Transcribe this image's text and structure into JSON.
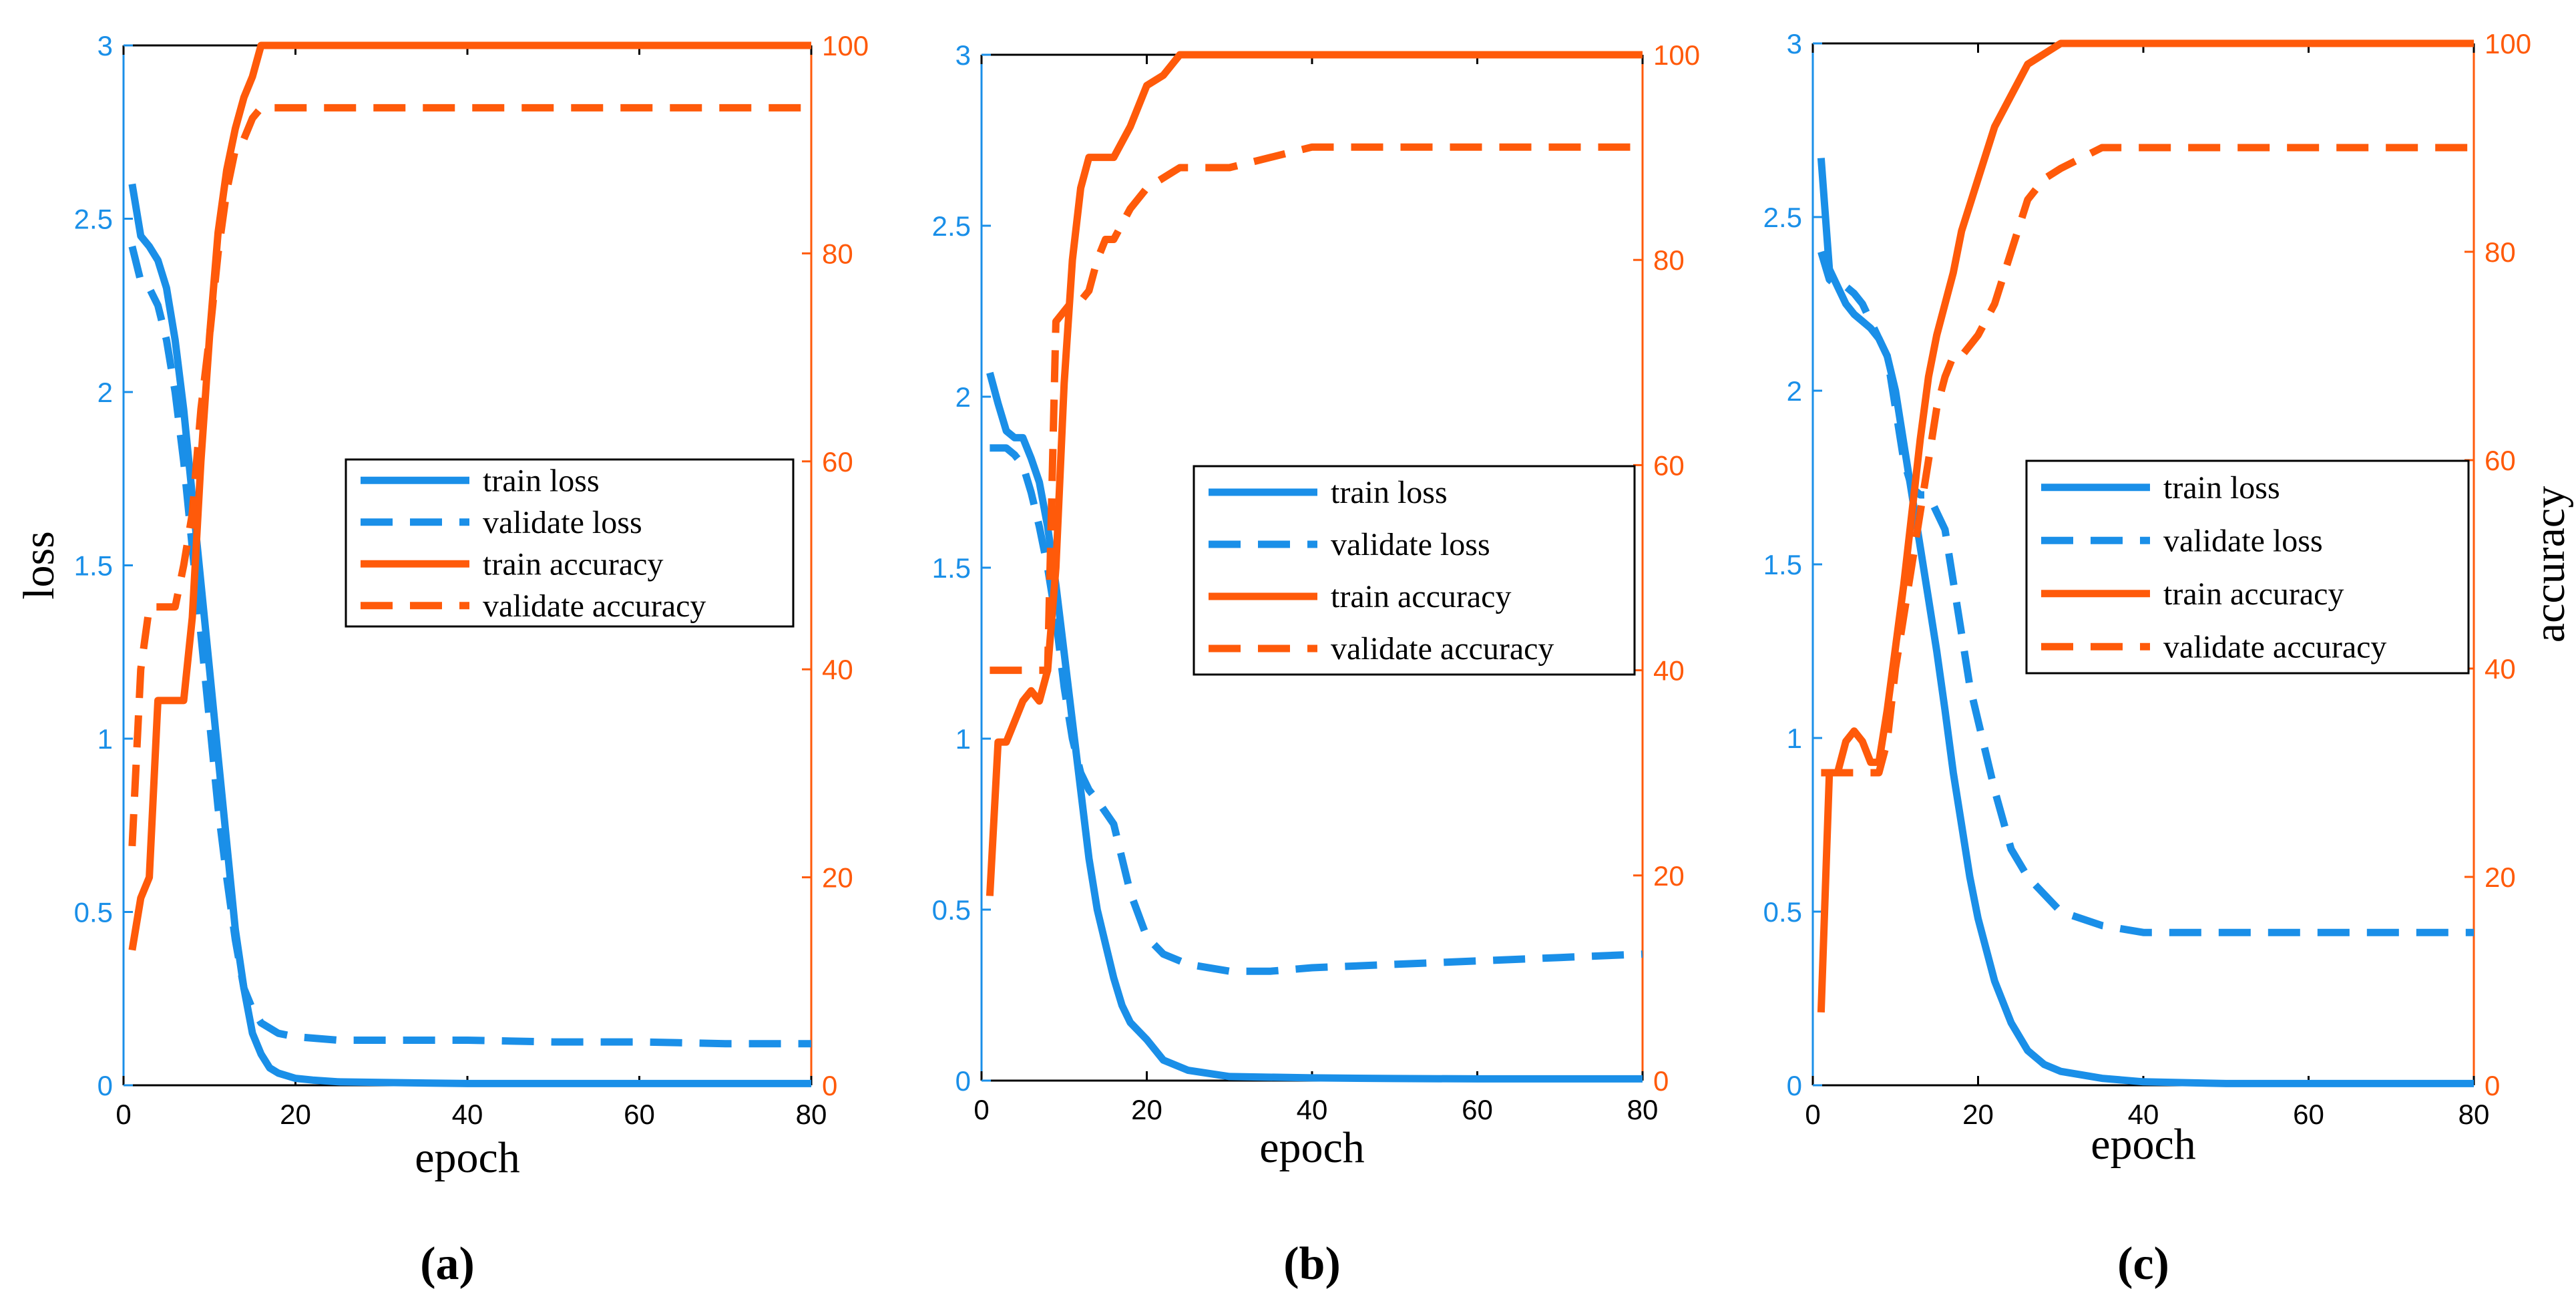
{
  "colors": {
    "loss": "#1a8fe8",
    "accuracy": "#ff5a0a",
    "axis": "#000000"
  },
  "chart_data": [
    {
      "type": "line",
      "caption": "(a)",
      "xlabel": "epoch",
      "ylabel_left": "loss",
      "ylabel_right": "",
      "xlim": [
        0,
        80
      ],
      "ylim_left": [
        0,
        3
      ],
      "ylim_right": [
        0,
        100
      ],
      "xticks": [
        "0",
        "20",
        "40",
        "60",
        "80"
      ],
      "yticks_left": [
        "0",
        "0.5",
        "1",
        "1.5",
        "2",
        "2.5",
        "3"
      ],
      "yticks_right": [
        "0",
        "20",
        "40",
        "60",
        "80",
        "100"
      ],
      "legend": [
        "train loss",
        "validate loss",
        "train accuracy",
        "validate accuracy"
      ],
      "legend_position": "center-right",
      "series": [
        {
          "name": "train loss",
          "axis": "left",
          "dash": false,
          "x": [
            1,
            2,
            3,
            4,
            5,
            6,
            7,
            8,
            9,
            10,
            11,
            12,
            13,
            14,
            15,
            16,
            17,
            18,
            20,
            22,
            25,
            30,
            40,
            50,
            60,
            70,
            80
          ],
          "y": [
            2.6,
            2.45,
            2.42,
            2.38,
            2.3,
            2.15,
            1.95,
            1.7,
            1.45,
            1.2,
            0.95,
            0.7,
            0.45,
            0.28,
            0.15,
            0.09,
            0.05,
            0.035,
            0.02,
            0.015,
            0.01,
            0.008,
            0.005,
            0.005,
            0.005,
            0.005,
            0.005
          ]
        },
        {
          "name": "validate loss",
          "axis": "left",
          "dash": true,
          "x": [
            1,
            2,
            3,
            4,
            5,
            6,
            7,
            8,
            9,
            10,
            11,
            12,
            13,
            14,
            15,
            16,
            18,
            20,
            25,
            30,
            40,
            50,
            60,
            70,
            80
          ],
          "y": [
            2.42,
            2.32,
            2.3,
            2.25,
            2.15,
            2.0,
            1.8,
            1.55,
            1.3,
            1.05,
            0.8,
            0.6,
            0.42,
            0.28,
            0.22,
            0.18,
            0.15,
            0.14,
            0.13,
            0.13,
            0.13,
            0.125,
            0.125,
            0.12,
            0.12
          ]
        },
        {
          "name": "train accuracy",
          "axis": "right",
          "dash": false,
          "x": [
            1,
            2,
            3,
            4,
            5,
            6,
            7,
            8,
            9,
            10,
            11,
            12,
            13,
            14,
            15,
            16,
            18,
            80
          ],
          "y": [
            13,
            18,
            20,
            37,
            37,
            37,
            37,
            45,
            60,
            72,
            82,
            88,
            92,
            95,
            97,
            100,
            100,
            100
          ]
        },
        {
          "name": "validate accuracy",
          "axis": "right",
          "dash": true,
          "x": [
            1,
            2,
            3,
            4,
            5,
            6,
            7,
            8,
            9,
            10,
            11,
            12,
            13,
            14,
            15,
            16,
            18,
            80
          ],
          "y": [
            23,
            40,
            46,
            46,
            46,
            46,
            50,
            55,
            65,
            72,
            80,
            86,
            90,
            91,
            93,
            94,
            94,
            94
          ]
        }
      ]
    },
    {
      "type": "line",
      "caption": "(b)",
      "xlabel": "epoch",
      "ylabel_left": "",
      "ylabel_right": "",
      "xlim": [
        0,
        80
      ],
      "ylim_left": [
        0,
        3
      ],
      "ylim_right": [
        0,
        100
      ],
      "xticks": [
        "0",
        "20",
        "40",
        "60",
        "80"
      ],
      "yticks_left": [
        "0",
        "0.5",
        "1",
        "1.5",
        "2",
        "2.5",
        "3"
      ],
      "yticks_right": [
        "0",
        "20",
        "40",
        "60",
        "80",
        "100"
      ],
      "legend": [
        "train loss",
        "validate loss",
        "train accuracy",
        "validate accuracy"
      ],
      "legend_position": "center-right",
      "series": [
        {
          "name": "train loss",
          "axis": "left",
          "dash": false,
          "x": [
            1,
            2,
            3,
            4,
            5,
            6,
            7,
            8,
            9,
            10,
            11,
            12,
            13,
            14,
            15,
            16,
            17,
            18,
            20,
            22,
            25,
            30,
            40,
            50,
            60,
            70,
            80
          ],
          "y": [
            2.07,
            1.98,
            1.9,
            1.88,
            1.88,
            1.82,
            1.75,
            1.62,
            1.45,
            1.25,
            1.05,
            0.85,
            0.65,
            0.5,
            0.4,
            0.3,
            0.22,
            0.17,
            0.12,
            0.06,
            0.03,
            0.012,
            0.008,
            0.006,
            0.005,
            0.005,
            0.005
          ]
        },
        {
          "name": "validate loss",
          "axis": "left",
          "dash": true,
          "x": [
            1,
            2,
            3,
            4,
            5,
            6,
            7,
            8,
            9,
            10,
            11,
            12,
            13,
            14,
            16,
            18,
            20,
            22,
            25,
            30,
            35,
            40,
            50,
            60,
            70,
            80
          ],
          "y": [
            1.85,
            1.85,
            1.85,
            1.83,
            1.8,
            1.72,
            1.62,
            1.5,
            1.35,
            1.15,
            1.0,
            0.9,
            0.85,
            0.82,
            0.75,
            0.55,
            0.42,
            0.37,
            0.34,
            0.32,
            0.32,
            0.33,
            0.34,
            0.35,
            0.36,
            0.37
          ]
        },
        {
          "name": "train accuracy",
          "axis": "right",
          "dash": false,
          "x": [
            1,
            2,
            3,
            4,
            5,
            6,
            7,
            8,
            9,
            10,
            11,
            12,
            13,
            14,
            15,
            16,
            18,
            20,
            22,
            24,
            26,
            80
          ],
          "y": [
            18,
            33,
            33,
            35,
            37,
            38,
            37,
            40,
            50,
            68,
            80,
            87,
            90,
            90,
            90,
            90,
            93,
            97,
            98,
            100,
            100,
            100
          ]
        },
        {
          "name": "validate accuracy",
          "axis": "right",
          "dash": true,
          "x": [
            1,
            2,
            3,
            4,
            5,
            6,
            7,
            8,
            9,
            10,
            11,
            12,
            13,
            14,
            15,
            16,
            18,
            20,
            22,
            24,
            26,
            30,
            35,
            40,
            80
          ],
          "y": [
            40,
            40,
            40,
            40,
            40,
            40,
            40,
            40,
            74,
            75,
            76,
            76,
            77,
            80,
            82,
            82,
            85,
            87,
            88,
            89,
            89,
            89,
            90,
            91,
            91
          ]
        }
      ]
    },
    {
      "type": "line",
      "caption": "(c)",
      "xlabel": "epoch",
      "ylabel_left": "",
      "ylabel_right": "accuracy",
      "xlim": [
        0,
        80
      ],
      "ylim_left": [
        0,
        3
      ],
      "ylim_right": [
        0,
        100
      ],
      "xticks": [
        "0",
        "20",
        "40",
        "60",
        "80"
      ],
      "yticks_left": [
        "0",
        "0.5",
        "1",
        "1.5",
        "2",
        "2.5",
        "3"
      ],
      "yticks_right": [
        "0",
        "20",
        "40",
        "60",
        "80",
        "100"
      ],
      "legend": [
        "train loss",
        "validate loss",
        "train accuracy",
        "validate accuracy"
      ],
      "legend_position": "center-right",
      "series": [
        {
          "name": "train loss",
          "axis": "left",
          "dash": false,
          "x": [
            1,
            2,
            3,
            4,
            5,
            6,
            7,
            8,
            9,
            10,
            11,
            12,
            13,
            14,
            15,
            16,
            17,
            18,
            19,
            20,
            22,
            24,
            26,
            28,
            30,
            35,
            40,
            50,
            60,
            70,
            80
          ],
          "y": [
            2.67,
            2.35,
            2.3,
            2.25,
            2.22,
            2.2,
            2.18,
            2.15,
            2.1,
            2.0,
            1.85,
            1.7,
            1.55,
            1.4,
            1.25,
            1.08,
            0.9,
            0.75,
            0.6,
            0.48,
            0.3,
            0.18,
            0.1,
            0.06,
            0.04,
            0.02,
            0.01,
            0.005,
            0.005,
            0.005,
            0.005
          ]
        },
        {
          "name": "validate loss",
          "axis": "left",
          "dash": true,
          "x": [
            1,
            2,
            3,
            4,
            5,
            6,
            7,
            8,
            9,
            10,
            11,
            12,
            13,
            14,
            15,
            16,
            17,
            18,
            19,
            20,
            22,
            24,
            26,
            28,
            30,
            35,
            40,
            50,
            60,
            70,
            80
          ],
          "y": [
            2.4,
            2.32,
            2.3,
            2.3,
            2.28,
            2.25,
            2.2,
            2.15,
            2.1,
            1.95,
            1.8,
            1.72,
            1.7,
            1.7,
            1.65,
            1.6,
            1.45,
            1.3,
            1.15,
            1.05,
            0.85,
            0.68,
            0.6,
            0.55,
            0.5,
            0.46,
            0.44,
            0.44,
            0.44,
            0.44,
            0.44
          ]
        },
        {
          "name": "train accuracy",
          "axis": "right",
          "dash": false,
          "x": [
            1,
            2,
            3,
            4,
            5,
            6,
            7,
            8,
            9,
            10,
            11,
            12,
            13,
            14,
            15,
            16,
            17,
            18,
            20,
            22,
            24,
            26,
            28,
            30,
            80
          ],
          "y": [
            7,
            30,
            30,
            33,
            34,
            33,
            31,
            31,
            36,
            42,
            48,
            55,
            62,
            68,
            72,
            75,
            78,
            82,
            87,
            92,
            95,
            98,
            99,
            100,
            100
          ]
        },
        {
          "name": "validate accuracy",
          "axis": "right",
          "dash": true,
          "x": [
            1,
            2,
            3,
            4,
            5,
            6,
            7,
            8,
            9,
            10,
            11,
            12,
            13,
            14,
            15,
            16,
            17,
            18,
            20,
            22,
            24,
            26,
            28,
            30,
            35,
            80
          ],
          "y": [
            30,
            30,
            30,
            30,
            30,
            30,
            30,
            30,
            33,
            40,
            45,
            50,
            55,
            60,
            65,
            68,
            70,
            70,
            72,
            75,
            80,
            85,
            87,
            88,
            90,
            90
          ]
        }
      ]
    }
  ]
}
